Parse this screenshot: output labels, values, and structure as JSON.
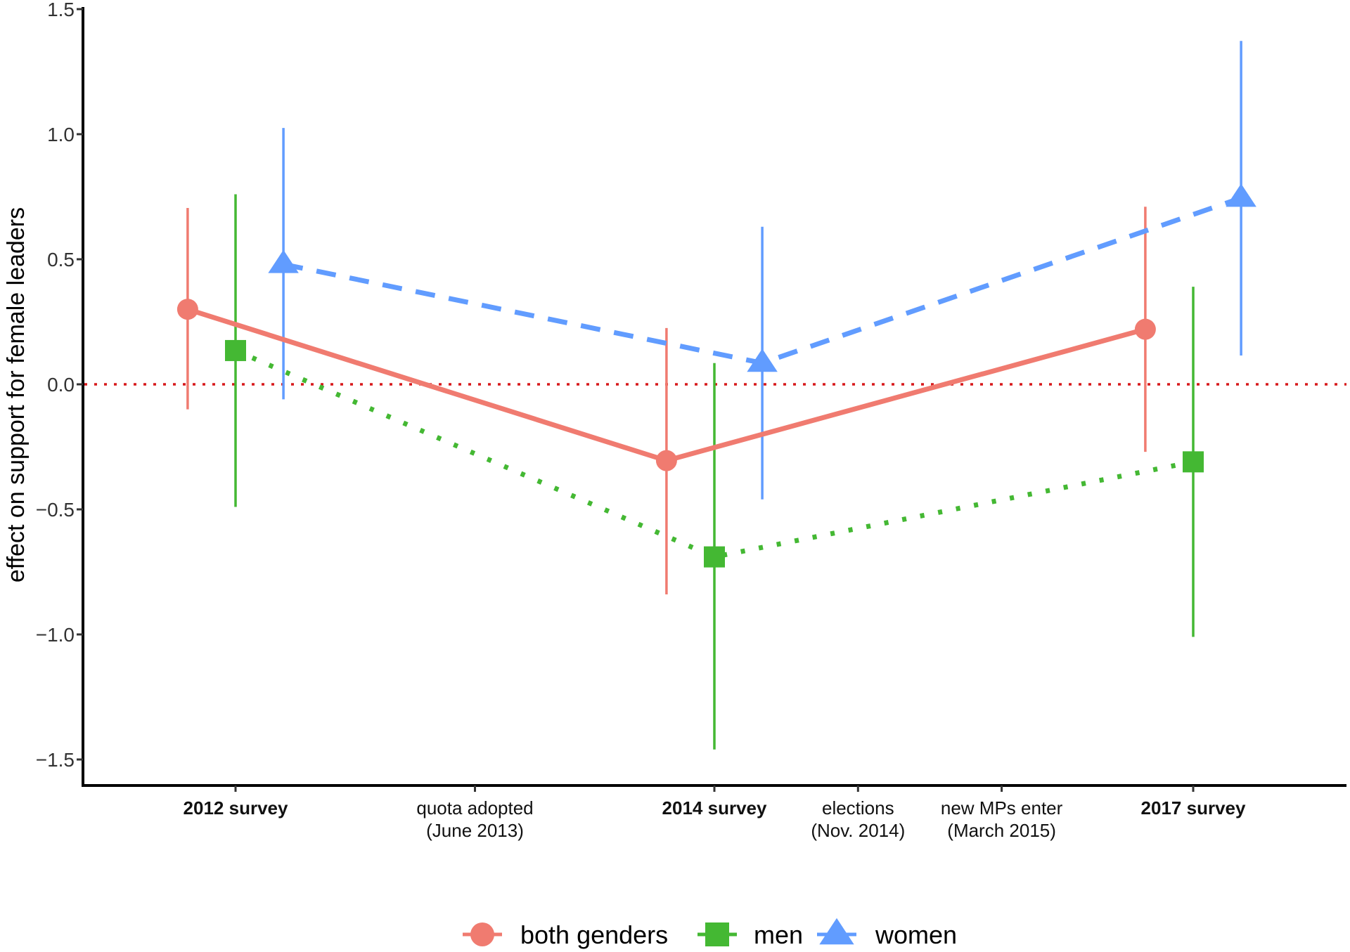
{
  "chart_data": {
    "type": "line",
    "title": "",
    "xlabel": "",
    "ylabel": "effect on support for female leaders",
    "ylim": [
      -1.6,
      1.5
    ],
    "xlim": [
      0.36,
      5.64
    ],
    "grid": false,
    "y_ticks": [
      {
        "value": 1.5,
        "label": "1.5"
      },
      {
        "value": 1.0,
        "label": "1.0"
      },
      {
        "value": 0.5,
        "label": "0.5"
      },
      {
        "value": 0.0,
        "label": "0.0"
      },
      {
        "value": -0.5,
        "label": "−0.5"
      },
      {
        "value": -1.0,
        "label": "−1.0"
      },
      {
        "value": -1.5,
        "label": "−1.5"
      }
    ],
    "x_ticks": [
      {
        "value": 1.0,
        "lines": [
          "2012 survey"
        ],
        "bold": true
      },
      {
        "value": 2.0,
        "lines": [
          "quota adopted",
          "(June 2013)"
        ],
        "bold": false
      },
      {
        "value": 3.0,
        "lines": [
          "2014 survey"
        ],
        "bold": true
      },
      {
        "value": 3.6,
        "lines": [
          "elections",
          "(Nov. 2014)"
        ],
        "bold": false
      },
      {
        "value": 4.2,
        "lines": [
          "new MPs enter",
          "(March 2015)"
        ],
        "bold": false
      },
      {
        "value": 5.0,
        "lines": [
          "2017 survey"
        ],
        "bold": true
      }
    ],
    "reference_line": {
      "y": 0.0,
      "style": "dotted",
      "color": "#D7191C"
    },
    "categories": [
      "2012 survey",
      "2014 survey",
      "2017 survey"
    ],
    "category_x": [
      1.0,
      3.0,
      5.0
    ],
    "series": [
      {
        "name": "both genders",
        "color": "#F07B70",
        "marker": "circle",
        "line_style": "solid",
        "x_offset": -0.2,
        "values": [
          0.3,
          -0.305,
          0.22
        ],
        "ci_low": [
          -0.1,
          -0.84,
          -0.27
        ],
        "ci_high": [
          0.705,
          0.225,
          0.71
        ]
      },
      {
        "name": "men",
        "color": "#44B833",
        "marker": "square",
        "line_style": "dotted",
        "x_offset": 0.0,
        "values": [
          0.135,
          -0.69,
          -0.31
        ],
        "ci_low": [
          -0.49,
          -1.46,
          -1.01
        ],
        "ci_high": [
          0.76,
          0.085,
          0.39
        ]
      },
      {
        "name": "women",
        "color": "#619CFF",
        "marker": "triangle",
        "line_style": "dashed",
        "x_offset": 0.2,
        "values": [
          0.48,
          0.085,
          0.745
        ],
        "ci_low": [
          -0.06,
          -0.46,
          0.115
        ],
        "ci_high": [
          1.025,
          0.63,
          1.373
        ]
      }
    ],
    "legend": {
      "placement": "bottom-center",
      "entries": [
        "both genders",
        "men",
        "women"
      ]
    }
  }
}
